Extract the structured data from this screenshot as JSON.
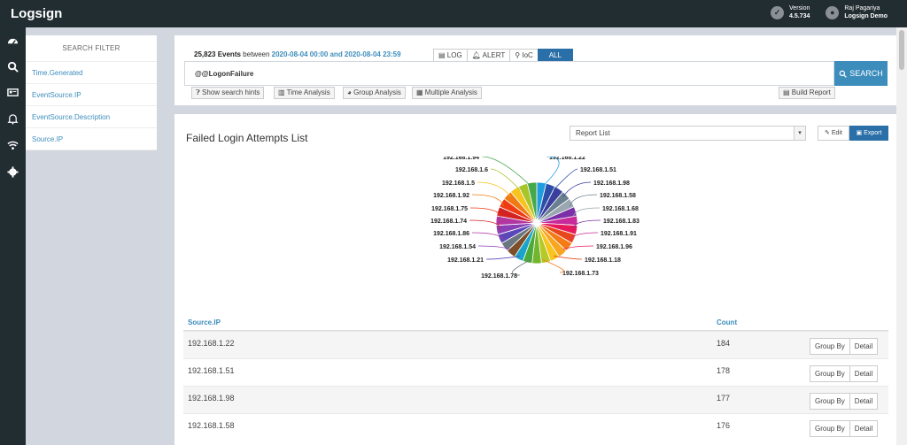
{
  "app": {
    "logo": "Logsign"
  },
  "top": {
    "version_label": "Version",
    "version_value": "4.5.734",
    "user_name": "Raj Pagariya",
    "user_org": "Logsign Demo"
  },
  "sidebar": {
    "icons": [
      "dashboard-icon",
      "search-icon",
      "card-icon",
      "bell-icon",
      "wifi-icon",
      "gear-icon"
    ]
  },
  "filter": {
    "title": "SEARCH FILTER",
    "items": [
      "Time.Generated",
      "EventSource.IP",
      "EventSource.Description",
      "Source.IP"
    ]
  },
  "search": {
    "events_count": "25,823 Events",
    "between_text": "between",
    "range": "2020-08-04 00:00 and 2020-08-04 23:59",
    "tabs": [
      "LOG",
      "ALERT",
      "IoC",
      "ALL"
    ],
    "query": "@@LogonFailure",
    "button": "SEARCH",
    "show_hints": "Show search hints",
    "time_analysis": "Time Analysis",
    "group_analysis": "Group Analysis",
    "multiple_analysis": "Multiple Analysis",
    "build_report": "Build Report"
  },
  "report": {
    "title": "Failed Login Attempts List",
    "select_value": "Report List",
    "edit": "Edit",
    "export": "Export"
  },
  "chart_data": {
    "type": "pie",
    "labels_right": [
      "192.168.1.22",
      "192.168.1.51",
      "192.168.1.98",
      "192.168.1.58",
      "192.168.1.68",
      "192.168.1.83",
      "192.168.1.91",
      "192.168.1.96",
      "192.168.1.18",
      "192.168.1.73"
    ],
    "labels_left": [
      "192.168.1.94",
      "192.168.1.6",
      "192.168.1.5",
      "192.168.1.92",
      "192.168.1.75",
      "192.168.1.74",
      "192.168.1.86",
      "192.168.1.54",
      "192.168.1.21",
      "192.168.1.78"
    ],
    "colors": [
      "#1e9ee0",
      "#2b4fa8",
      "#3a3f9e",
      "#6a7f8f",
      "#9aa6b0",
      "#7b2fa8",
      "#c72a9a",
      "#e6195c",
      "#e8471c",
      "#f47b16",
      "#f8a521",
      "#f7c51d",
      "#b6c926",
      "#73b62e",
      "#4caa3a",
      "#1aa4c9",
      "#7c4e2a",
      "#6b7780",
      "#5a48b8",
      "#8a3fb5",
      "#b236a0",
      "#d32222",
      "#ef3b12",
      "#f07a14",
      "#f9c31f",
      "#a8c52a",
      "#45a84a"
    ]
  },
  "table": {
    "headers": {
      "source": "Source.IP",
      "count": "Count"
    },
    "rows": [
      {
        "ip": "192.168.1.22",
        "count": "184"
      },
      {
        "ip": "192.168.1.51",
        "count": "178"
      },
      {
        "ip": "192.168.1.98",
        "count": "177"
      },
      {
        "ip": "192.168.1.58",
        "count": "176"
      }
    ],
    "group_by": "Group By",
    "detail": "Detail"
  }
}
